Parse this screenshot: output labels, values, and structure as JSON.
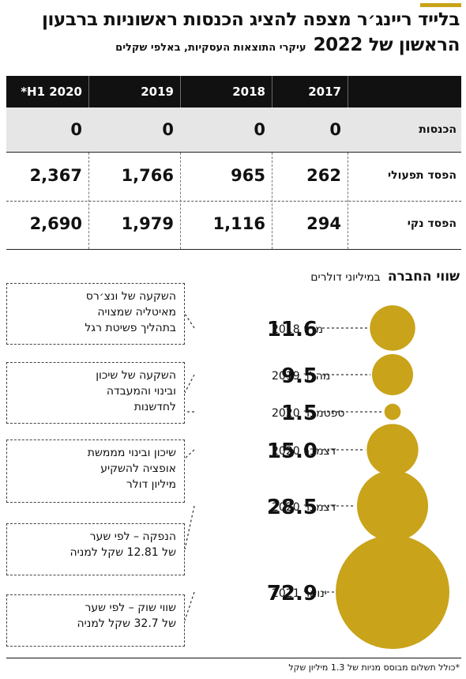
{
  "header": {
    "title_line1": "בלייד ריינג׳ר מצפה להציג הכנסות ראשוניות ברבעון",
    "title_line2": "הראשון של 2022",
    "subtitle": "עיקרי התוצאות העסקיות, באלפי שקלים"
  },
  "table": {
    "columns": [
      "2017",
      "2018",
      "2019",
      "*H1 2020"
    ],
    "rows": [
      {
        "label": "הכנסות",
        "values": [
          "0",
          "0",
          "0",
          "0"
        ]
      },
      {
        "label": "הפסד תפעולי",
        "values": [
          "262",
          "965",
          "1,766",
          "2,367"
        ]
      },
      {
        "label": "הפסד נקי",
        "values": [
          "294",
          "1,116",
          "1,979",
          "2,690"
        ]
      }
    ]
  },
  "valuation": {
    "title": "שווי החברה",
    "unit": "במיליוני דולרים"
  },
  "chart_data": {
    "type": "bubble",
    "title": "שווי החברה",
    "unit": "במיליוני דולרים",
    "points": [
      {
        "date": "מרץ 2018",
        "value": 11.6,
        "value_label": "11.6"
      },
      {
        "date": "מהלך 2019",
        "value": 9.5,
        "value_label": "9.5"
      },
      {
        "date": "ספטמבר 2020",
        "value": 1.5,
        "value_label": "1.5"
      },
      {
        "date": "דצמבר 2020",
        "value": 15.0,
        "value_label": "15.0"
      },
      {
        "date": "דצמבר 2020",
        "value": 28.5,
        "value_label": "28.5"
      },
      {
        "date": "ינואר 2021",
        "value": 72.9,
        "value_label": "72.9"
      }
    ],
    "bubble_color": "#c9a31a"
  },
  "notes": [
    {
      "lines": [
        "השקעה של ונצ׳רס",
        "מאיטליה שמצויה",
        "בתהליך פשיטת רגל"
      ]
    },
    {
      "lines": [
        "השקעה של שיכון",
        "ובינוי והמעבדה",
        "לחדשנות"
      ]
    },
    {
      "lines": [
        "שיכון ובינוי מממשת",
        "אופציה להשקיע",
        "מיליון דולר"
      ]
    },
    {
      "lines": [
        "הנפקה – לפי שער",
        "של 12.81 שקל למניה"
      ]
    },
    {
      "lines": [
        "שווי שוק – לפי שער",
        "של 32.7 שקל למניה"
      ]
    }
  ],
  "footnote": "*כולל תשלום מבוסס מניות של 1.3 מיליון שקל",
  "colors": {
    "accent": "#c9a31a",
    "band": "#e6e6e6",
    "header": "#111111"
  }
}
